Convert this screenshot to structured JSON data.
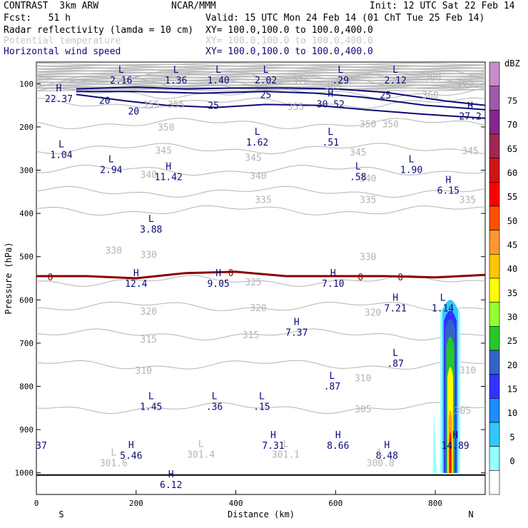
{
  "header": {
    "model": "CONTRAST  3km ARW",
    "org": "NCAR/MMM",
    "init": "Init: 12 UTC Sat 22 Feb 14",
    "fcst": "Fcst:   51 h",
    "valid": "Valid: 15 UTC Mon 24 Feb 14 (01 ChT Tue 25 Feb 14)",
    "fields": [
      {
        "name": "Radar reflectivity (lamda = 10 cm)",
        "xy": "XY= 100.0,100.0 to 100.0,400.0",
        "color": "#000000"
      },
      {
        "name": "Potential temperature",
        "xy": "XY= 100.0,100.0 to 100.0,400.0",
        "color": "#c8c8c8"
      },
      {
        "name": "Horizontal wind speed",
        "xy": "XY= 100.0,100.0 to 100.0,400.0",
        "color": "#0a0a78"
      }
    ]
  },
  "chart_data": {
    "type": "cross-section contour",
    "xlabel": "Distance (km)",
    "ylabel": "Pressure (hPa)",
    "xlim": [
      0,
      900
    ],
    "ylim": [
      1050,
      50
    ],
    "x_ticks": [
      0,
      200,
      400,
      600,
      800
    ],
    "y_ticks": [
      100,
      200,
      300,
      400,
      500,
      600,
      700,
      800,
      900,
      1000
    ],
    "x_end_labels": {
      "left": "S",
      "right": "N"
    },
    "colorbar": {
      "unit": "dBZ",
      "levels": [
        "0",
        "5",
        "10",
        "15",
        "20",
        "25",
        "30",
        "35",
        "40",
        "45",
        "50",
        "55",
        "60",
        "65",
        "70",
        "75"
      ],
      "colors": [
        "#ffffff",
        "#96ffff",
        "#32c8ff",
        "#1e8cff",
        "#3232ff",
        "#3264c8",
        "#28c828",
        "#96ff32",
        "#ffff00",
        "#ffc800",
        "#ff9632",
        "#ff5000",
        "#ff0000",
        "#d21414",
        "#a02850",
        "#82288c",
        "#a05aaa",
        "#c88cc8"
      ]
    },
    "theta_contours": [
      {
        "label": "380",
        "p": 80
      },
      {
        "label": "370",
        "p": 92
      },
      {
        "label": "365",
        "p": 100
      },
      {
        "label": "360",
        "p": 122
      },
      {
        "label": "355",
        "p": 145
      },
      {
        "label": "350",
        "p": 192
      },
      {
        "label": "345",
        "p": 250
      },
      {
        "label": "340",
        "p": 300
      },
      {
        "label": "335",
        "p": 350
      },
      {
        "label": "330",
        "p": 393
      },
      {
        "label": "325",
        "p": 556
      },
      {
        "label": "320",
        "p": 615
      },
      {
        "label": "315",
        "p": 680
      },
      {
        "label": "310",
        "p": 750
      },
      {
        "label": "305",
        "p": 850
      }
    ],
    "theta_labels": [
      {
        "t": "380",
        "x": 795,
        "p": 85
      },
      {
        "t": "370",
        "x": 530,
        "p": 93
      },
      {
        "t": "365",
        "x": 860,
        "p": 97
      },
      {
        "t": "365",
        "x": 595,
        "p": 104
      },
      {
        "t": "360",
        "x": 790,
        "p": 126
      },
      {
        "t": "355",
        "x": 230,
        "p": 147
      },
      {
        "t": "355",
        "x": 280,
        "p": 147
      },
      {
        "t": "355",
        "x": 520,
        "p": 152
      },
      {
        "t": "350",
        "x": 260,
        "p": 200
      },
      {
        "t": "350",
        "x": 665,
        "p": 193
      },
      {
        "t": "350",
        "x": 710,
        "p": 193
      },
      {
        "t": "345",
        "x": 255,
        "p": 254
      },
      {
        "t": "345",
        "x": 435,
        "p": 270
      },
      {
        "t": "345",
        "x": 645,
        "p": 258
      },
      {
        "t": "345",
        "x": 870,
        "p": 255
      },
      {
        "t": "340",
        "x": 225,
        "p": 310
      },
      {
        "t": "340",
        "x": 445,
        "p": 312
      },
      {
        "t": "340",
        "x": 665,
        "p": 318
      },
      {
        "t": "335",
        "x": 455,
        "p": 368
      },
      {
        "t": "335",
        "x": 665,
        "p": 368
      },
      {
        "t": "335",
        "x": 865,
        "p": 368
      },
      {
        "t": "330",
        "x": 155,
        "p": 485
      },
      {
        "t": "330",
        "x": 225,
        "p": 495
      },
      {
        "t": "330",
        "x": 665,
        "p": 500
      },
      {
        "t": "325",
        "x": 435,
        "p": 558
      },
      {
        "t": "320",
        "x": 225,
        "p": 626
      },
      {
        "t": "320",
        "x": 445,
        "p": 618
      },
      {
        "t": "320",
        "x": 675,
        "p": 628
      },
      {
        "t": "315",
        "x": 225,
        "p": 690
      },
      {
        "t": "315",
        "x": 430,
        "p": 680
      },
      {
        "t": "310",
        "x": 215,
        "p": 763
      },
      {
        "t": "310",
        "x": 655,
        "p": 780
      },
      {
        "t": "310",
        "x": 865,
        "p": 762
      },
      {
        "t": "305",
        "x": 655,
        "p": 852
      },
      {
        "t": "305",
        "x": 855,
        "p": 855
      }
    ],
    "wind_contours": [
      {
        "label": "20",
        "points": [
          [
            80,
            125
          ],
          [
            180,
            140
          ],
          [
            260,
            150
          ],
          [
            360,
            155
          ],
          [
            460,
            148
          ],
          [
            560,
            150
          ],
          [
            660,
            160
          ],
          [
            770,
            170
          ],
          [
            900,
            180
          ]
        ]
      },
      {
        "label": "25",
        "points": [
          [
            80,
            112
          ],
          [
            200,
            108
          ],
          [
            300,
            112
          ],
          [
            400,
            110
          ],
          [
            500,
            110
          ],
          [
            600,
            112
          ],
          [
            700,
            120
          ],
          [
            820,
            140
          ],
          [
            900,
            150
          ]
        ]
      },
      {
        "label": "0",
        "points": [
          [
            0,
            545
          ],
          [
            100,
            545
          ],
          [
            200,
            550
          ],
          [
            300,
            538
          ],
          [
            400,
            535
          ],
          [
            500,
            545
          ],
          [
            600,
            545
          ],
          [
            700,
            545
          ],
          [
            800,
            548
          ],
          [
            900,
            542
          ]
        ]
      }
    ],
    "wind_labels": [
      {
        "t": "20",
        "x": 137,
        "p": 138
      },
      {
        "t": "20",
        "x": 195,
        "p": 163
      },
      {
        "t": "25",
        "x": 355,
        "p": 150
      },
      {
        "t": "25",
        "x": 460,
        "p": 125
      },
      {
        "t": "25",
        "x": 700,
        "p": 126
      },
      {
        "t": "0",
        "x": 28,
        "p": 547
      },
      {
        "t": "0",
        "x": 390,
        "p": 537
      },
      {
        "t": "0",
        "x": 650,
        "p": 547
      },
      {
        "t": "0",
        "x": 730,
        "p": 547
      }
    ],
    "extrema": [
      {
        "kind": "L",
        "value": "2.16",
        "x": 170,
        "p": 75
      },
      {
        "kind": "L",
        "value": "1.36",
        "x": 280,
        "p": 75
      },
      {
        "kind": "L",
        "value": "1.40",
        "x": 365,
        "p": 75
      },
      {
        "kind": "L",
        "value": "2.02",
        "x": 460,
        "p": 75
      },
      {
        "kind": "L",
        "value": ".29",
        "x": 610,
        "p": 75
      },
      {
        "kind": "L",
        "value": "2.12",
        "x": 720,
        "p": 75
      },
      {
        "kind": "H",
        "value": "22.37",
        "x": 45,
        "p": 118
      },
      {
        "kind": "H",
        "value": "30.52",
        "x": 590,
        "p": 130
      },
      {
        "kind": "H",
        "value": "27.2",
        "x": 870,
        "p": 158
      },
      {
        "kind": "L",
        "value": "1.04",
        "x": 50,
        "p": 247
      },
      {
        "kind": "L",
        "value": "1.62",
        "x": 443,
        "p": 218
      },
      {
        "kind": "L",
        "value": ".51",
        "x": 590,
        "p": 218
      },
      {
        "kind": "L",
        "value": "2.94",
        "x": 150,
        "p": 282
      },
      {
        "kind": "H",
        "value": "11.42",
        "x": 265,
        "p": 298
      },
      {
        "kind": "L",
        "value": ".58",
        "x": 645,
        "p": 298
      },
      {
        "kind": "L",
        "value": "1.90",
        "x": 752,
        "p": 282
      },
      {
        "kind": "H",
        "value": "6.15",
        "x": 826,
        "p": 330
      },
      {
        "kind": "L",
        "value": "3.88",
        "x": 230,
        "p": 420
      },
      {
        "kind": "H",
        "value": "12.4",
        "x": 200,
        "p": 545
      },
      {
        "kind": "H",
        "value": "9.05",
        "x": 365,
        "p": 545
      },
      {
        "kind": "H",
        "value": "7.10",
        "x": 595,
        "p": 545
      },
      {
        "kind": "H",
        "value": "7.21",
        "x": 720,
        "p": 602
      },
      {
        "kind": "L",
        "value": "1.14",
        "x": 815,
        "p": 602
      },
      {
        "kind": "H",
        "value": "7.37",
        "x": 522,
        "p": 658
      },
      {
        "kind": "L",
        "value": ".87",
        "x": 720,
        "p": 730
      },
      {
        "kind": "L",
        "value": ".87",
        "x": 593,
        "p": 783
      },
      {
        "kind": "L",
        "value": "1.45",
        "x": 230,
        "p": 830
      },
      {
        "kind": "L",
        "value": ".36",
        "x": 357,
        "p": 830
      },
      {
        "kind": "L",
        "value": ".15",
        "x": 452,
        "p": 830
      },
      {
        "kind": "H",
        "value": "7.31",
        "x": 475,
        "p": 920
      },
      {
        "kind": "H",
        "value": "8.66",
        "x": 605,
        "p": 920
      },
      {
        "kind": "H",
        "value": "8.48",
        "x": 703,
        "p": 943
      },
      {
        "kind": "H",
        "value": "14.89",
        "x": 840,
        "p": 920
      },
      {
        "kind": "H",
        "value": "5.46",
        "x": 190,
        "p": 943
      },
      {
        "kind": "H",
        "value": "6.12",
        "x": 270,
        "p": 1010
      },
      {
        "kind": "",
        "value": "37",
        "x": 10,
        "p": 920
      }
    ],
    "theta_extrema": [
      {
        "kind": "L",
        "value": "301.6",
        "x": 155,
        "p": 960
      },
      {
        "kind": "L",
        "value": "301.4",
        "x": 330,
        "p": 940
      },
      {
        "kind": "L",
        "value": "301.1",
        "x": 500,
        "p": 940
      },
      {
        "kind": "L",
        "value": "300.8",
        "x": 690,
        "p": 960
      }
    ],
    "reflectivity_core": {
      "x_center": 830,
      "top_p": 590,
      "bottom_p": 1000,
      "max_dbz": 50
    }
  }
}
